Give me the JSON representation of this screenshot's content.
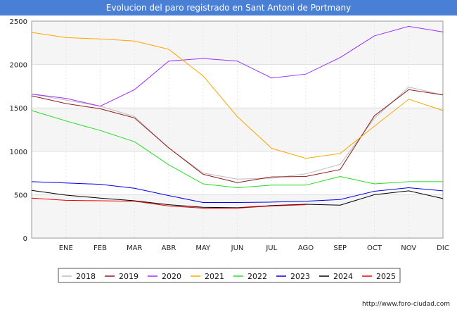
{
  "chart_data": {
    "type": "line",
    "title": "Evolucion del paro registrado en Sant Antoni de Portmany",
    "categories": [
      "",
      "ENE",
      "FEB",
      "MAR",
      "ABR",
      "MAY",
      "JUN",
      "JUL",
      "AGO",
      "SEP",
      "OCT",
      "NOV",
      "DIC"
    ],
    "ylim": [
      0,
      2500
    ],
    "yticks": [
      0,
      500,
      1000,
      1500,
      2000,
      2500
    ],
    "grid": true,
    "legend_position": "bottom",
    "series": [
      {
        "name": "2018",
        "color": "#bbbbbb",
        "values": [
          1660,
          1590,
          1520,
          1400,
          1040,
          750,
          680,
          690,
          740,
          850,
          1380,
          1740,
          1650
        ]
      },
      {
        "name": "2019",
        "color": "#8b1a1a",
        "values": [
          1640,
          1550,
          1490,
          1385,
          1040,
          735,
          640,
          705,
          710,
          790,
          1410,
          1710,
          1650
        ]
      },
      {
        "name": "2020",
        "color": "#9b30ff",
        "values": [
          1660,
          1610,
          1520,
          1710,
          2040,
          2070,
          2040,
          1845,
          1890,
          2080,
          2330,
          2440,
          2375
        ]
      },
      {
        "name": "2021",
        "color": "#ffa500",
        "values": [
          2370,
          2310,
          2295,
          2270,
          2175,
          1870,
          1400,
          1035,
          920,
          975,
          1290,
          1600,
          1470
        ]
      },
      {
        "name": "2022",
        "color": "#22dd22",
        "values": [
          1470,
          1350,
          1240,
          1110,
          845,
          625,
          580,
          610,
          610,
          710,
          625,
          650,
          650
        ]
      },
      {
        "name": "2023",
        "color": "#0000ee",
        "values": [
          650,
          635,
          620,
          575,
          490,
          410,
          410,
          415,
          425,
          445,
          540,
          580,
          545
        ]
      },
      {
        "name": "2024",
        "color": "#000000",
        "values": [
          550,
          495,
          460,
          430,
          385,
          355,
          350,
          375,
          390,
          380,
          500,
          545,
          455
        ]
      },
      {
        "name": "2025",
        "color": "#ee0000",
        "values": [
          460,
          435,
          430,
          425,
          370,
          345,
          345,
          370,
          385,
          null,
          null,
          null,
          null
        ]
      }
    ]
  },
  "footer": {
    "url": "http://www.foro-ciudad.com"
  }
}
